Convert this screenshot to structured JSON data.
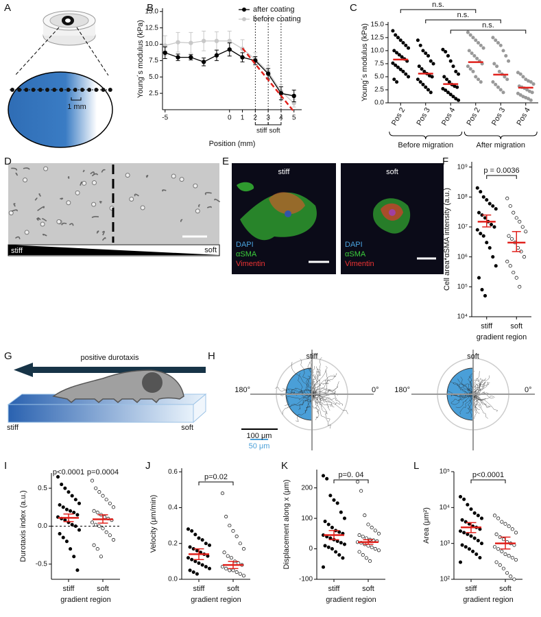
{
  "panel_labels": [
    "A",
    "B",
    "C",
    "D",
    "E",
    "F",
    "G",
    "H",
    "I",
    "J",
    "K",
    "L"
  ],
  "diagram_a": {
    "scale_label": "1 mm"
  },
  "diagram_d": {
    "left_label": "stiff",
    "right_label": "soft"
  },
  "images_e": [
    {
      "title": "stiff",
      "channels": [
        "DAPI",
        "αSMA",
        "Vimentin"
      ]
    },
    {
      "title": "soft",
      "channels": [
        "DAPI",
        "αSMA",
        "Vimentin"
      ]
    }
  ],
  "diagram_g": {
    "arrow_label": "positive durotaxis",
    "left_label": "stiff",
    "right_label": "soft"
  },
  "plots_h": {
    "panels": [
      {
        "title": "stiff",
        "angle_left": "180°",
        "angle_right": "0°"
      },
      {
        "title": "soft",
        "angle_left": "180°",
        "angle_right": "0°"
      }
    ],
    "scale_labels": [
      "100 μm",
      "50 μm"
    ]
  },
  "chart_data": [
    {
      "type": "line",
      "xlabel": "Position (mm)",
      "ylabel": "Young´s modulus (kPa)",
      "x": [
        -5,
        -4,
        -3,
        -2,
        -1,
        0,
        1,
        2,
        3,
        4,
        5
      ],
      "series": [
        {
          "name": "after coating",
          "color": "#000000",
          "values": [
            8.7,
            8.0,
            8.0,
            7.3,
            8.3,
            9.2,
            8.0,
            7.5,
            5.5,
            2.5,
            2.1
          ],
          "errors": [
            0.9,
            0.5,
            0.4,
            0.6,
            0.8,
            1.0,
            0.7,
            0.6,
            0.8,
            1.0,
            0.9
          ]
        },
        {
          "name": "before coating",
          "color": "#c8c8c8",
          "values": [
            9.8,
            10.3,
            10.2,
            10.5,
            10.5,
            10.5,
            9.3,
            7.7,
            5.8,
            2.8,
            1.0
          ],
          "errors": [
            1.5,
            1.5,
            1.6,
            1.5,
            1.4,
            1.5,
            1.4,
            1.0,
            0.9,
            1.0,
            0.6
          ]
        }
      ],
      "fit_line": {
        "color": "#e0201b",
        "x": [
          1,
          5
        ],
        "values": [
          9.4,
          -0.3
        ]
      },
      "vlines": [
        2,
        3,
        4
      ],
      "regions": [
        {
          "label": "stiff",
          "from": 2,
          "to": 3
        },
        {
          "label": "soft",
          "from": 3,
          "to": 4
        }
      ],
      "legend": "upper right",
      "xlim": [
        -5.2,
        5.6
      ],
      "xticks": [
        -5,
        0,
        1,
        2,
        3,
        4,
        5
      ],
      "ylim": [
        0,
        15.5
      ],
      "yticks": [
        2.5,
        {
          "value": 5,
          "label": "5.0"
        },
        7.5,
        {
          "value": 10,
          "label": "10.0"
        },
        12.5,
        {
          "value": 15,
          "label": "15.0"
        }
      ]
    },
    {
      "type": "strip",
      "ylabel": "Young´s modulus (kPa)",
      "categories": [
        "Pos 2",
        "Pos 3",
        "Pos 4",
        "Pos 2",
        "Pos 3",
        "Pos 4"
      ],
      "groups": [
        {
          "label": "Before migration",
          "from": 0,
          "to": 2
        },
        {
          "label": "After migration",
          "from": 3,
          "to": 5
        }
      ],
      "points": [
        [
          13.8,
          13,
          12.5,
          12,
          11.5,
          11,
          10.5,
          10,
          9.6,
          9.2,
          8.8,
          8.4,
          8,
          7.6,
          7.2,
          6.8,
          6.4,
          6,
          5.5,
          5,
          4.5,
          4
        ],
        [
          12,
          11,
          10,
          9.5,
          9,
          8,
          7.5,
          7,
          6.5,
          6,
          5.6,
          5.2,
          5,
          4.5,
          4,
          3.5,
          3,
          2.5,
          2
        ],
        [
          10.2,
          9.8,
          9,
          8,
          7,
          6,
          5.5,
          5,
          4.5,
          4,
          3.5,
          3.2,
          3,
          2.7,
          2.4,
          2,
          1.6,
          1.2,
          0.8,
          0.5
        ],
        [
          13.5,
          13,
          12.5,
          12,
          11.5,
          11,
          10.5,
          10,
          9.5,
          9,
          8.5,
          8,
          7.5,
          7,
          6.5,
          6,
          5,
          4.5,
          4
        ],
        [
          12.5,
          12,
          11.5,
          11,
          10,
          9,
          8,
          7.5,
          7,
          6,
          5.5,
          5,
          4.5,
          4,
          3.5,
          3,
          2.5,
          2
        ],
        [
          5.8,
          5.5,
          5,
          4.5,
          4.2,
          4,
          3.6,
          3.2,
          3,
          2.8,
          2.5,
          2.2,
          2,
          1.8,
          1.5,
          1.2,
          1,
          0.8,
          0.5
        ]
      ],
      "markers": [
        "filled",
        "filled",
        "filled",
        "filled",
        "filled",
        "filled"
      ],
      "point_colors": [
        "#000000",
        "#000000",
        "#000000",
        "#999999",
        "#999999",
        "#999999"
      ],
      "means": [
        8.3,
        5.6,
        3.6,
        7.8,
        5.4,
        2.9
      ],
      "mean_color": "#e0201b",
      "brackets": [
        {
          "label": "n.s.",
          "from": 0,
          "to": 3
        },
        {
          "label": "n.s.",
          "from": 1,
          "to": 4
        },
        {
          "label": "n.s.",
          "from": 2,
          "to": 5
        }
      ],
      "ylim": [
        0,
        15.5
      ],
      "yticks": [
        {
          "value": 0,
          "label": "0.0"
        },
        2.5,
        {
          "value": 5,
          "label": "5.0"
        },
        7.5,
        {
          "value": 10,
          "label": "10.0"
        },
        12.5,
        {
          "value": 15,
          "label": "15.0"
        }
      ]
    },
    {
      "type": "strip",
      "ylabel": "Cell area*αSMA intensity (a.u.)",
      "xlabel": "gradient region",
      "categories": [
        "stiff",
        "soft"
      ],
      "yscale": "log",
      "points": [
        [
          200000000,
          150000000,
          100000000,
          80000000,
          60000000,
          50000000,
          40000000,
          30000000,
          25000000,
          20000000,
          15000000,
          12000000,
          10000000,
          8000000,
          6000000,
          5000000,
          3000000,
          2000000,
          1000000,
          500000,
          200000,
          80000,
          50000
        ],
        [
          90000000,
          50000000,
          30000000,
          20000000,
          15000000,
          10000000,
          7000000,
          5000000,
          4000000,
          3000000,
          2000000,
          1500000,
          1000000,
          700000,
          500000,
          300000,
          200000,
          100000
        ]
      ],
      "markers": [
        "filled",
        "open"
      ],
      "point_colors": [
        "#000000",
        "#000000"
      ],
      "means": [
        15000000,
        3000000
      ],
      "ci": [
        [
          10000000,
          25000000
        ],
        [
          1500000,
          7000000
        ]
      ],
      "mean_color": "#e0201b",
      "brackets": [
        {
          "label": "p = 0.0036",
          "from": 0,
          "to": 1
        }
      ],
      "ylim": [
        10000,
        1500000000
      ],
      "yticks": [
        {
          "value": 10000,
          "label": "10⁴"
        },
        {
          "value": 100000,
          "label": "10⁵"
        },
        {
          "value": 1000000,
          "label": "10⁶"
        },
        {
          "value": 10000000,
          "label": "10⁷"
        },
        {
          "value": 100000000,
          "label": "10⁸"
        },
        {
          "value": 1000000000,
          "label": "10⁹"
        }
      ]
    },
    {
      "type": "strip",
      "ylabel": "Durotaxis index (a.u.)",
      "xlabel": "gradient region",
      "categories": [
        "stiff",
        "soft"
      ],
      "points": [
        [
          0.65,
          0.55,
          0.5,
          0.45,
          0.4,
          0.35,
          0.3,
          0.28,
          0.25,
          0.22,
          0.2,
          0.18,
          0.15,
          0.12,
          0.1,
          0.08,
          0.05,
          0.02,
          0,
          -0.05,
          -0.1,
          -0.15,
          -0.2,
          -0.3,
          -0.4,
          -0.58
        ],
        [
          0.6,
          0.5,
          0.45,
          0.4,
          0.35,
          0.3,
          0.25,
          0.2,
          0.18,
          0.15,
          0.12,
          0.1,
          0.08,
          0.05,
          0.02,
          0,
          -0.03,
          -0.08,
          -0.12,
          -0.18,
          -0.25,
          -0.3,
          -0.4
        ]
      ],
      "markers": [
        "filled",
        "open"
      ],
      "point_colors": [
        "#000000",
        "#000000"
      ],
      "means": [
        0.11,
        0.09
      ],
      "ci": [
        [
          0.06,
          0.16
        ],
        [
          0.04,
          0.15
        ]
      ],
      "mean_color": "#e0201b",
      "hline": 0,
      "brackets": [
        {
          "label": "p<0.0001",
          "from": 0,
          "to": 0
        },
        {
          "label": "p=0.0004",
          "from": 1,
          "to": 1
        }
      ],
      "ylim": [
        -0.7,
        0.7
      ],
      "yticks": [
        -0.5,
        {
          "value": 0,
          "label": "0.0"
        },
        0.5
      ]
    },
    {
      "type": "strip",
      "ylabel": "Velocity (μm/min)",
      "xlabel": "gradient region",
      "categories": [
        "stiff",
        "soft"
      ],
      "points": [
        [
          0.28,
          0.27,
          0.25,
          0.23,
          0.22,
          0.2,
          0.19,
          0.18,
          0.17,
          0.16,
          0.15,
          0.14,
          0.13,
          0.12,
          0.11,
          0.1,
          0.09,
          0.08,
          0.07,
          0.06,
          0.05,
          0.04,
          0.03
        ],
        [
          0.48,
          0.35,
          0.3,
          0.27,
          0.24,
          0.2,
          0.17,
          0.15,
          0.13,
          0.12,
          0.1,
          0.09,
          0.08,
          0.07,
          0.06,
          0.05,
          0.05,
          0.04,
          0.03,
          0.02
        ]
      ],
      "markers": [
        "filled",
        "open"
      ],
      "point_colors": [
        "#000000",
        "#000000"
      ],
      "means": [
        0.14,
        0.08
      ],
      "ci": [
        [
          0.11,
          0.17
        ],
        [
          0.06,
          0.1
        ]
      ],
      "mean_color": "#e0201b",
      "brackets": [
        {
          "label": "p=0.02",
          "from": 0,
          "to": 1
        }
      ],
      "ylim": [
        0,
        0.62
      ],
      "yticks": [
        {
          "value": 0,
          "label": "0.0"
        },
        0.2,
        0.4,
        0.6
      ]
    },
    {
      "type": "strip",
      "ylabel": "Displacement along x (μm)",
      "xlabel": "gradient region",
      "categories": [
        "stiff",
        "soft"
      ],
      "points": [
        [
          240,
          230,
          175,
          160,
          150,
          120,
          100,
          90,
          80,
          70,
          60,
          55,
          50,
          45,
          40,
          35,
          30,
          25,
          20,
          15,
          10,
          5,
          0,
          -10,
          -20,
          -30,
          -60
        ],
        [
          220,
          190,
          110,
          80,
          70,
          60,
          50,
          45,
          40,
          35,
          30,
          28,
          25,
          22,
          20,
          15,
          10,
          5,
          0,
          -5,
          -10,
          -20,
          -30,
          -40
        ]
      ],
      "markers": [
        "filled",
        "open"
      ],
      "point_colors": [
        "#000000",
        "#000000"
      ],
      "means": [
        45,
        22
      ],
      "ci": [
        [
          30,
          60
        ],
        [
          15,
          30
        ]
      ],
      "mean_color": "#e0201b",
      "brackets": [
        {
          "label": "p=0. 04",
          "from": 0,
          "to": 1
        }
      ],
      "ylim": [
        -100,
        260
      ],
      "yticks": [
        -100,
        0,
        100,
        200
      ]
    },
    {
      "type": "strip",
      "ylabel": "Area (μm²)",
      "xlabel": "gradient region",
      "categories": [
        "stiff",
        "soft"
      ],
      "yscale": "log",
      "points": [
        [
          20000,
          17000,
          12000,
          9000,
          7000,
          6000,
          5000,
          4500,
          4000,
          3500,
          3000,
          2800,
          2500,
          2200,
          2000,
          1800,
          1600,
          1400,
          1200,
          1000,
          900,
          800,
          700,
          600,
          500,
          400,
          300
        ],
        [
          6000,
          5000,
          4000,
          3500,
          3000,
          2500,
          2000,
          1800,
          1500,
          1300,
          1100,
          1000,
          900,
          800,
          700,
          600,
          500,
          450,
          400,
          350,
          300,
          250,
          200,
          150,
          120,
          100
        ]
      ],
      "markers": [
        "filled",
        "open"
      ],
      "point_colors": [
        "#000000",
        "#000000"
      ],
      "means": [
        2800,
        1000
      ],
      "ci": [
        [
          2000,
          3800
        ],
        [
          700,
          1500
        ]
      ],
      "mean_color": "#e0201b",
      "brackets": [
        {
          "label": "p<0.0001",
          "from": 0,
          "to": 1
        }
      ],
      "ylim": [
        100,
        100000
      ],
      "yticks": [
        {
          "value": 100,
          "label": "10²"
        },
        {
          "value": 1000,
          "label": "10³"
        },
        {
          "value": 10000,
          "label": "10⁴"
        },
        {
          "value": 100000,
          "label": "10⁵"
        }
      ]
    }
  ]
}
